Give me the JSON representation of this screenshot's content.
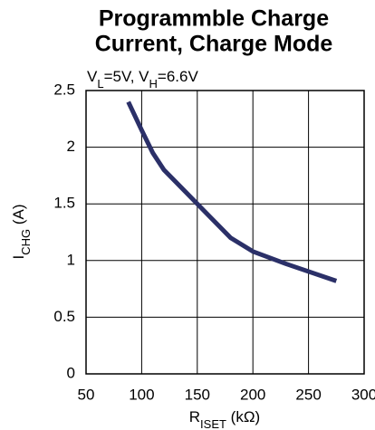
{
  "chart_data": {
    "type": "line",
    "title": [
      "Programmble Charge",
      "Current, Charge Mode"
    ],
    "subtitle": [
      {
        "text": "V"
      },
      {
        "text": "L",
        "sub": true
      },
      {
        "text": "=5V, V"
      },
      {
        "text": "H",
        "sub": true
      },
      {
        "text": "=6.6V"
      }
    ],
    "x_label": [
      {
        "text": "R"
      },
      {
        "text": "ISET",
        "sub": true
      },
      {
        "text": " (kΩ)"
      }
    ],
    "y_label": [
      {
        "text": "I"
      },
      {
        "text": "CHG",
        "sub": true
      },
      {
        "text": " (A)"
      }
    ],
    "x": [
      88,
      100,
      110,
      120,
      140,
      160,
      180,
      200,
      230,
      275
    ],
    "series": [
      {
        "name": null,
        "color": "#2b3068",
        "values": [
          2.4,
          2.15,
          1.95,
          1.8,
          1.6,
          1.4,
          1.2,
          1.08,
          0.97,
          0.82
        ]
      }
    ],
    "xlim": [
      50,
      300
    ],
    "xticks": [
      50,
      100,
      150,
      200,
      250,
      300
    ],
    "ylim": [
      0,
      2.5
    ],
    "yticks": [
      0,
      0.5,
      1,
      1.5,
      2,
      2.5
    ],
    "grid": true
  }
}
